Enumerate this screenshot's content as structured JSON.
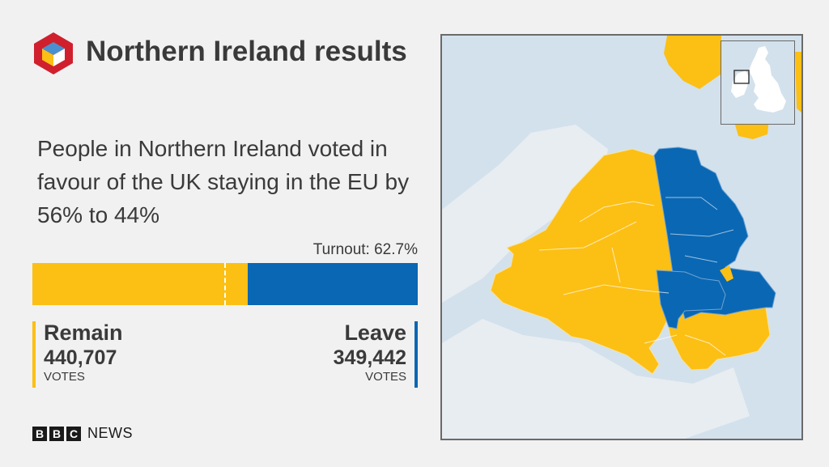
{
  "header": {
    "title": "Northern Ireland results"
  },
  "summary": {
    "text": "People in Northern Ireland voted in favour of the UK staying in the EU by 56% to 44%"
  },
  "result": {
    "turnout_label": "Turnout: 62.7%",
    "remain": {
      "label": "Remain",
      "votes": "440,707",
      "unit": "VOTES",
      "share": 0.558
    },
    "leave": {
      "label": "Leave",
      "votes": "349,442",
      "unit": "VOTES",
      "share": 0.442
    }
  },
  "colors": {
    "remain": "#fcbf14",
    "leave": "#0a67b3",
    "land": "#e8edf1",
    "sea": "#d3e1ec"
  },
  "map": {
    "region": "Northern Ireland",
    "legend_remain": "Remain",
    "legend_leave": "Leave"
  },
  "footer": {
    "brand_letters": [
      "B",
      "B",
      "C"
    ],
    "brand_word": "NEWS"
  },
  "icons": {
    "logo": "eu-ref-cube-logo"
  }
}
